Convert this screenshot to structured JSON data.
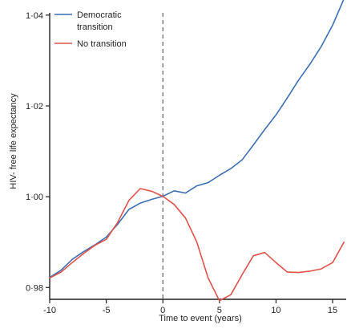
{
  "chart_data": {
    "type": "line",
    "xlabel": "Time to event (years)",
    "ylabel": "HIV- free life expectancy",
    "xlim": [
      -10,
      16.2
    ],
    "ylim": [
      0.9774,
      1.0405
    ],
    "x_ticks": [
      -10,
      -5,
      0,
      5,
      10,
      15
    ],
    "x_tick_labels": [
      "-10",
      "-5",
      "0",
      "5",
      "10",
      "15"
    ],
    "y_ticks": [
      0.98,
      1.0,
      1.02,
      1.04
    ],
    "y_tick_labels": [
      "0·98",
      "1·00",
      "1·02",
      "1·04"
    ],
    "event_line_x": 0,
    "legend_position": "top-left",
    "series": [
      {
        "name": "Democratic transition",
        "legend_lines": [
          "Democratic",
          "transition"
        ],
        "color": "#3c6fb4",
        "x": [
          -10,
          -9,
          -8,
          -7,
          -6,
          -5,
          -4,
          -3,
          -2,
          -1,
          0,
          1,
          2,
          3,
          4,
          5,
          6,
          7,
          8,
          9,
          10,
          11,
          12,
          13,
          14,
          15,
          16
        ],
        "y": [
          0.9822,
          0.9838,
          0.9862,
          0.9879,
          0.9894,
          0.9911,
          0.9939,
          0.9972,
          0.9986,
          0.9994,
          1.0001,
          1.0013,
          1.0008,
          1.0024,
          1.0031,
          1.0047,
          1.0062,
          1.0081,
          1.0114,
          1.0148,
          1.018,
          1.0218,
          1.0257,
          1.0292,
          1.0331,
          1.0378,
          1.0436
        ]
      },
      {
        "name": "No transition",
        "legend_lines": [
          "No transition"
        ],
        "color": "#e0514b",
        "x": [
          -10,
          -9,
          -8,
          -7,
          -6,
          -5,
          -4,
          -3,
          -2,
          -1,
          0,
          1,
          2,
          3,
          4,
          5,
          6,
          7,
          8,
          9,
          10,
          11,
          12,
          13,
          14,
          15,
          16
        ],
        "y": [
          0.9821,
          0.9834,
          0.9855,
          0.9875,
          0.9893,
          0.9906,
          0.9943,
          0.9992,
          1.0018,
          1.0012,
          1.0001,
          0.9983,
          0.9953,
          0.99,
          0.9821,
          0.9771,
          0.9784,
          0.9828,
          0.987,
          0.9877,
          0.9855,
          0.9834,
          0.9833,
          0.9836,
          0.9841,
          0.9855,
          0.99
        ]
      }
    ]
  }
}
